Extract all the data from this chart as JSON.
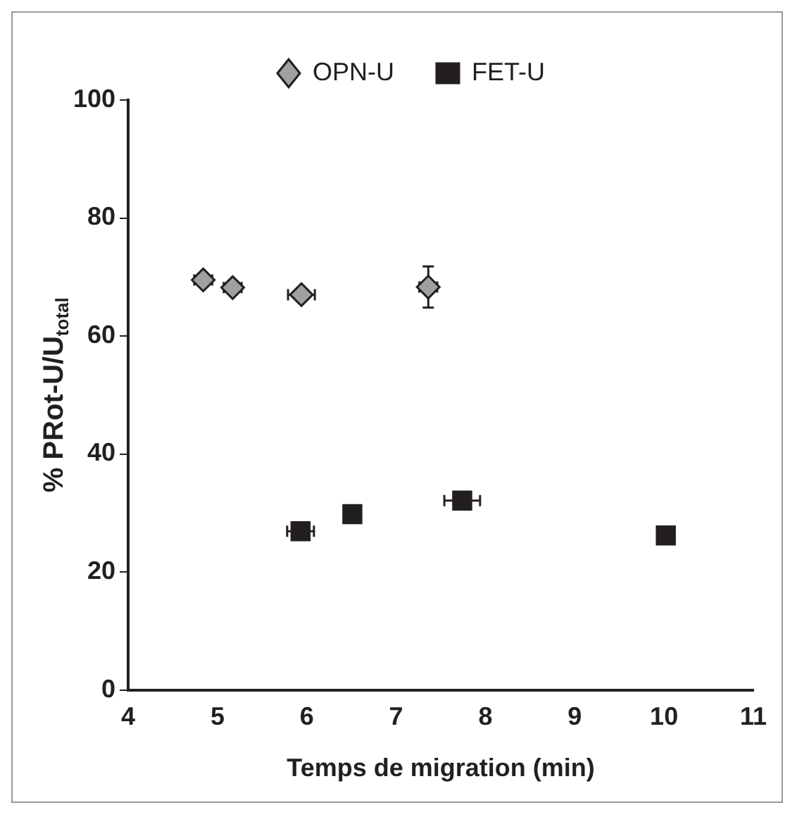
{
  "chart_data": {
    "type": "scatter",
    "xlabel": "Temps de migration (min)",
    "ylabel": "% PRot-U/U$_{total}$",
    "xlim": [
      4,
      11
    ],
    "xticks": [
      4,
      5,
      6,
      7,
      8,
      9,
      10,
      11
    ],
    "ylim": [
      0,
      100
    ],
    "yticks": [
      0,
      20,
      40,
      60,
      80,
      100
    ],
    "grid": false,
    "legend": "top",
    "series": [
      {
        "name": "OPN-U",
        "color": "#a0a0a0",
        "marker": "diamond",
        "x": [
          4.84,
          5.17,
          5.94,
          7.36
        ],
        "values": [
          69.5,
          68.2,
          67,
          68.3
        ],
        "errors": [
          1,
          1,
          1,
          3.5
        ],
        "xerrors": [
          0.1,
          0.1,
          0.15,
          0.1
        ]
      },
      {
        "name": "FET-U",
        "color": "#231f20",
        "marker": "square",
        "x": [
          5.93,
          6.51,
          7.74,
          10.02
        ],
        "values": [
          26.9,
          29.8,
          32.1,
          26.2
        ],
        "errors": [
          null,
          null,
          null,
          null
        ],
        "xerrors": [
          0.15,
          null,
          0.2,
          null
        ]
      }
    ]
  }
}
